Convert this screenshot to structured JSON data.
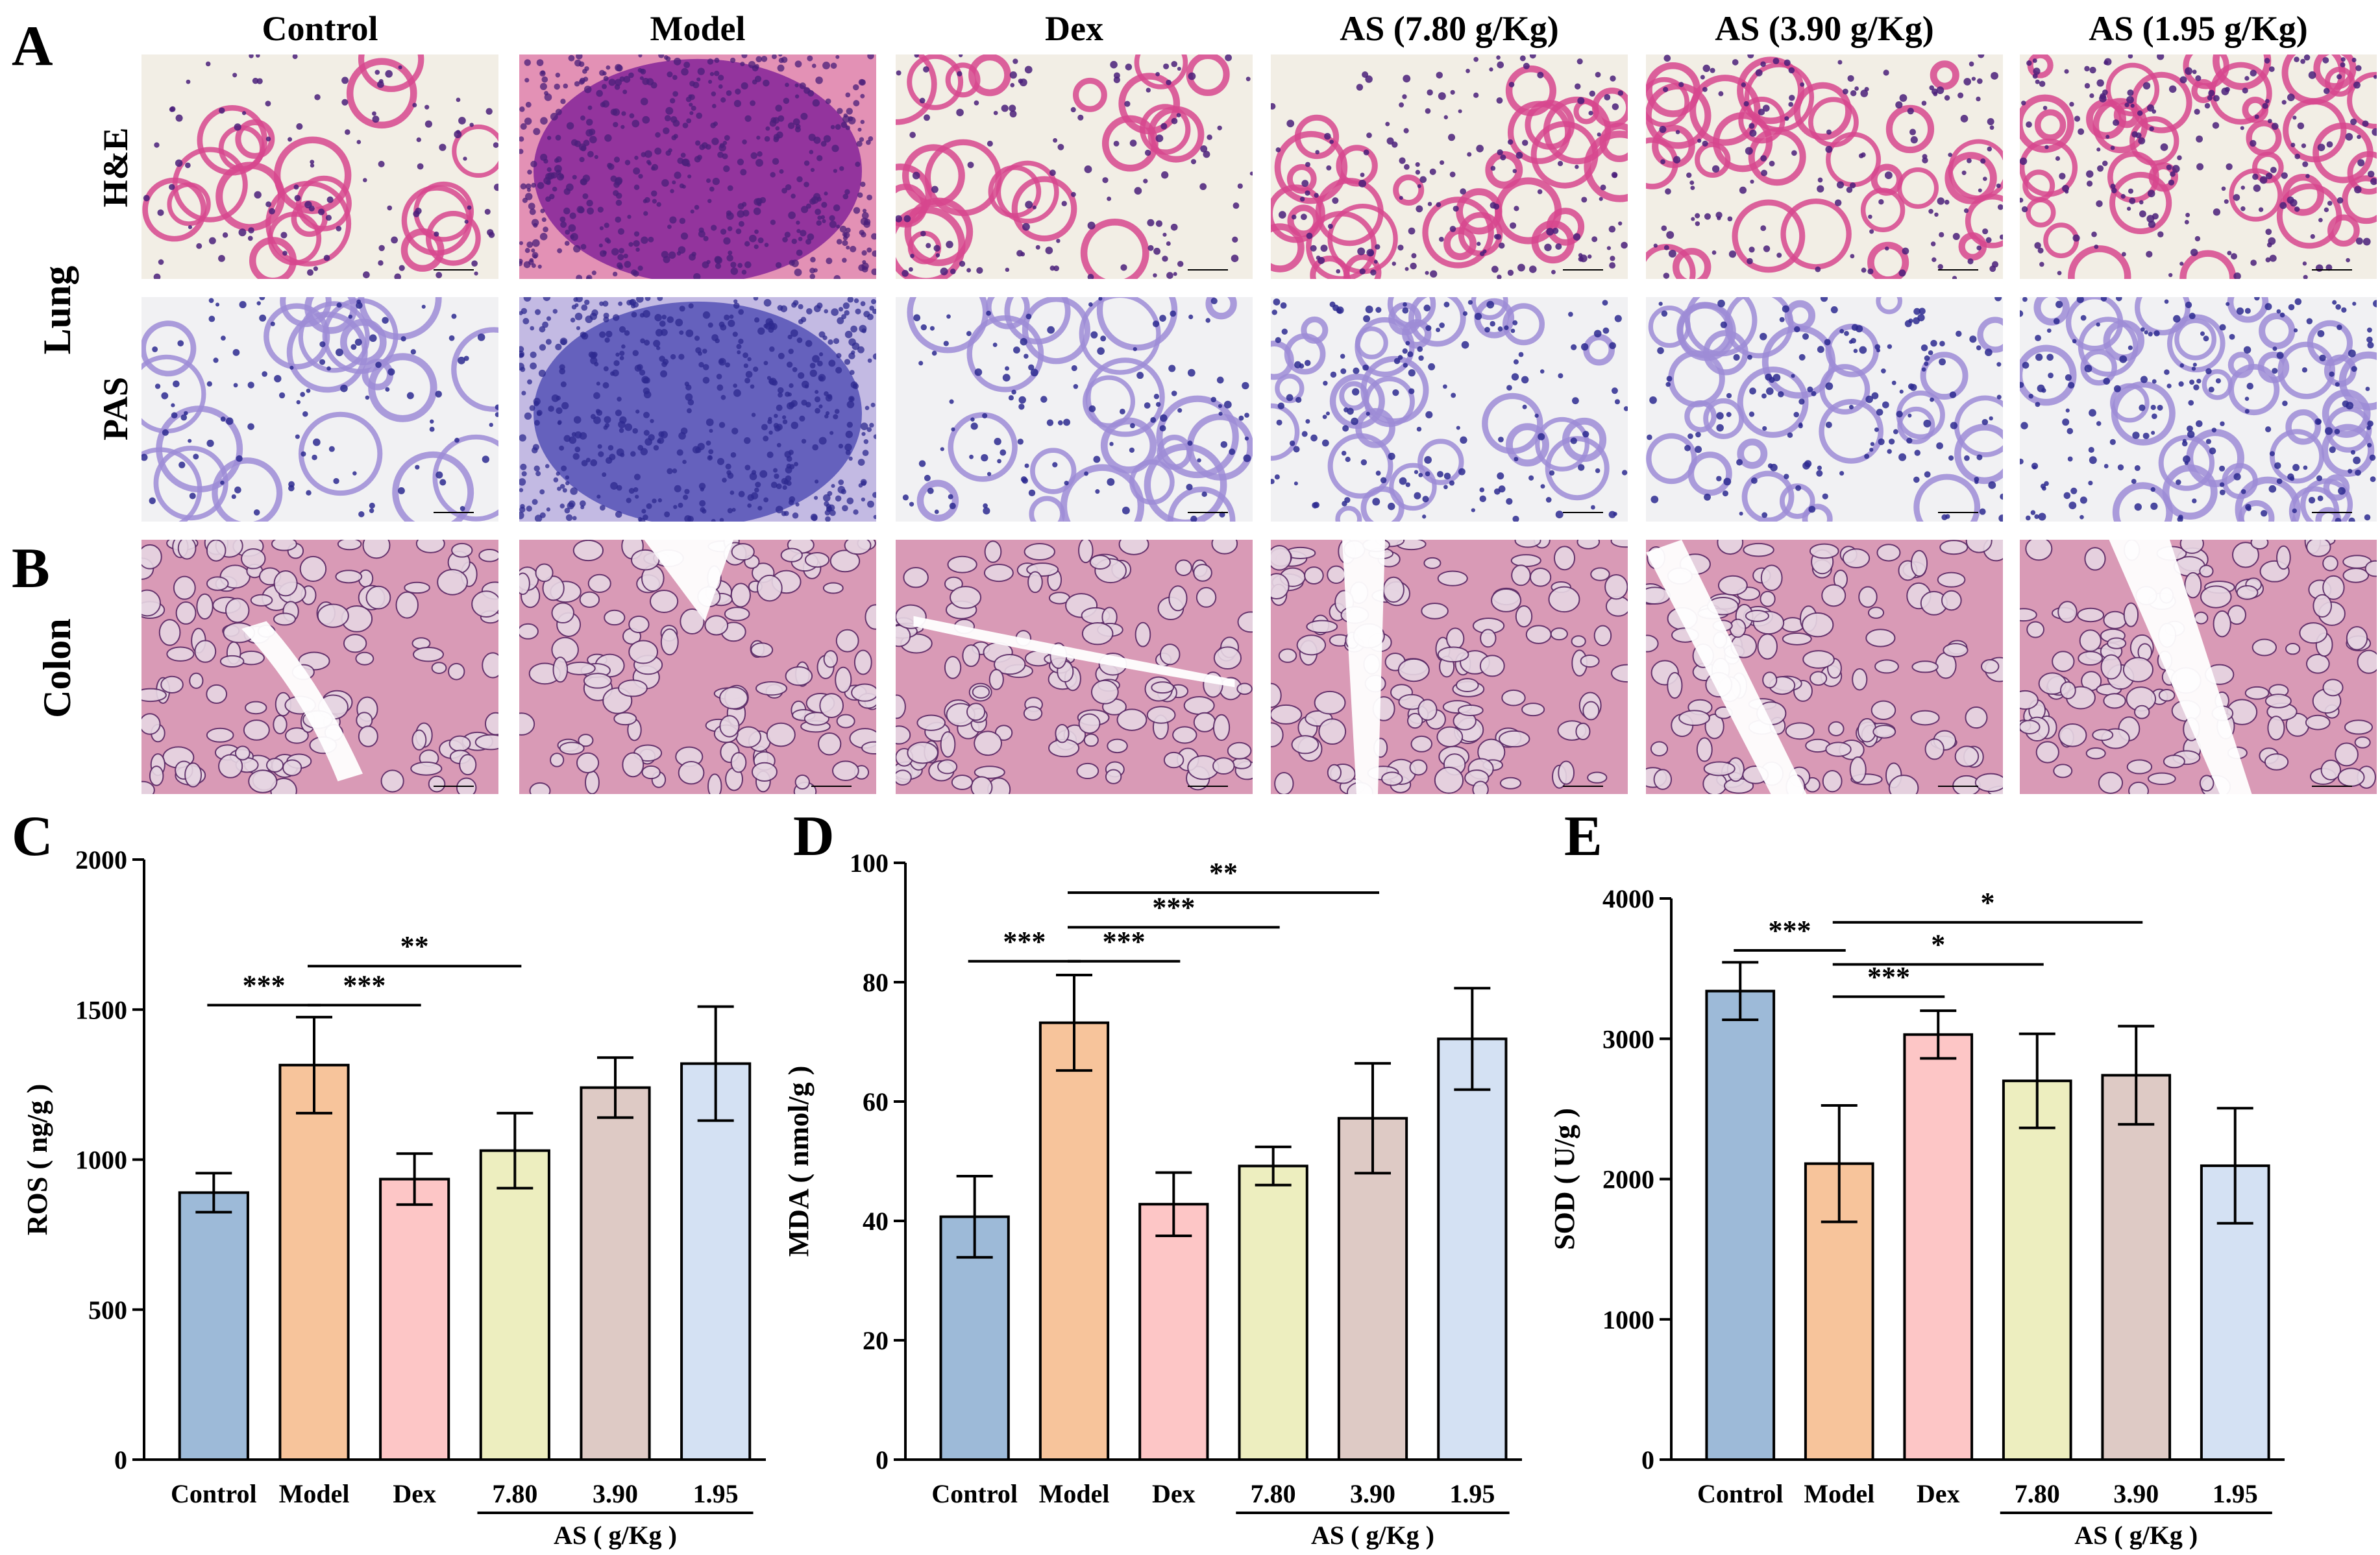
{
  "panels": {
    "A": "A",
    "B": "B",
    "C": "C",
    "D": "D",
    "E": "E"
  },
  "histology": {
    "column_headers": [
      "Control",
      "Model",
      "Dex",
      "AS (7.80 g/Kg)",
      "AS (3.90 g/Kg)",
      "AS (1.95 g/Kg)"
    ],
    "tissue_labels": {
      "lung": "Lung",
      "colon": "Colon"
    },
    "stain_labels": {
      "he": "H&E",
      "pas": "PAS"
    },
    "colors": {
      "he_background": "#f2eee5",
      "he_tissue": "#d7468e",
      "he_nuclei": "#4a1f7a",
      "model_dense": "#8a2a9a",
      "pas_background": "#f1f1f3",
      "pas_tissue": "#9d8cd6",
      "pas_nuclei": "#2d2a8f",
      "pas_dense": "#5b58b8",
      "colon_bg": "#d99ab6",
      "colon_gland": "#e7d6e3",
      "colon_nuclei": "#5a2a66"
    }
  },
  "chart_data": [
    {
      "type": "bar",
      "panel": "C",
      "categories": [
        "Control",
        "Model",
        "Dex",
        "7.80",
        "3.90",
        "1.95"
      ],
      "group_label": "AS ( g/Kg )",
      "ylabel": "ROS ( ng/g )",
      "ylim": [
        0,
        2000
      ],
      "yticks": [
        0,
        500,
        1000,
        1500,
        2000
      ],
      "values": [
        890,
        1315,
        935,
        1030,
        1240,
        1320
      ],
      "errors": [
        65,
        160,
        85,
        125,
        100,
        190
      ],
      "colors": [
        "#9dbad8",
        "#f7c49b",
        "#fdc6c6",
        "#edeebf",
        "#decac5",
        "#d4e1f3"
      ],
      "significance": [
        {
          "from": 0,
          "to": 1,
          "label": "***",
          "y": 1515
        },
        {
          "from": 1,
          "to": 2,
          "label": "***",
          "y": 1515
        },
        {
          "from": 1,
          "to": 3,
          "label": "**",
          "y": 1645
        }
      ]
    },
    {
      "type": "bar",
      "panel": "D",
      "categories": [
        "Control",
        "Model",
        "Dex",
        "7.80",
        "3.90",
        "1.95"
      ],
      "group_label": "AS ( g/Kg )",
      "ylabel": "MDA ( nmol/g )",
      "ylim": [
        0,
        100
      ],
      "yticks": [
        0,
        20,
        40,
        60,
        80,
        100
      ],
      "values": [
        40.7,
        73.2,
        42.8,
        49.2,
        57.2,
        70.5
      ],
      "errors": [
        6.8,
        8.0,
        5.3,
        3.2,
        9.2,
        8.5
      ],
      "colors": [
        "#9dbad8",
        "#f7c49b",
        "#fdc6c6",
        "#edeebf",
        "#decac5",
        "#d4e1f3"
      ],
      "significance": [
        {
          "from": 0,
          "to": 1,
          "label": "***",
          "y": 83.5
        },
        {
          "from": 1,
          "to": 2,
          "label": "***",
          "y": 83.5
        },
        {
          "from": 1,
          "to": 3,
          "label": "***",
          "y": 89.2
        },
        {
          "from": 1,
          "to": 4,
          "label": "**",
          "y": 95.0
        }
      ]
    },
    {
      "type": "bar",
      "panel": "E",
      "categories": [
        "Control",
        "Model",
        "Dex",
        "7.80",
        "3.90",
        "1.95"
      ],
      "group_label": "AS ( g/Kg )",
      "ylabel": "SOD ( U/g )",
      "ylim": [
        0,
        4000
      ],
      "yticks": [
        0,
        1000,
        2000,
        3000,
        4000
      ],
      "values": [
        3340,
        2110,
        3030,
        2700,
        2740,
        2095
      ],
      "errors": [
        205,
        415,
        170,
        335,
        350,
        410
      ],
      "colors": [
        "#9dbad8",
        "#f7c49b",
        "#fdc6c6",
        "#edeebf",
        "#decac5",
        "#d4e1f3"
      ],
      "significance": [
        {
          "from": 0,
          "to": 1,
          "label": "***",
          "y": 3630
        },
        {
          "from": 1,
          "to": 2,
          "label": "***",
          "y": 3300
        },
        {
          "from": 1,
          "to": 3,
          "label": "*",
          "y": 3530
        },
        {
          "from": 1,
          "to": 4,
          "label": "*",
          "y": 3830
        }
      ]
    }
  ]
}
